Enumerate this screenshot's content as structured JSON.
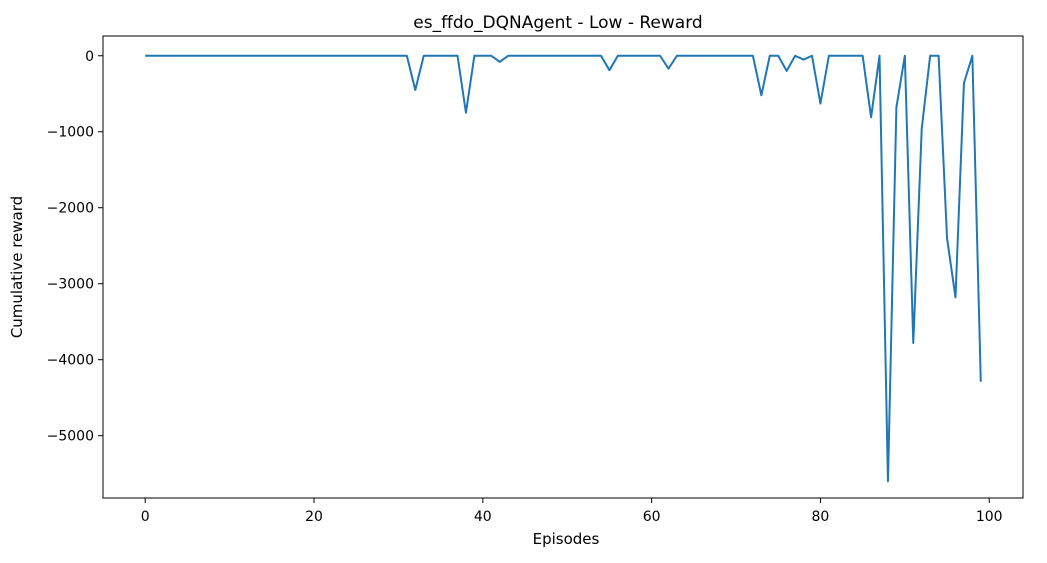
{
  "chart_data": {
    "type": "line",
    "title": "es_ffdo_DQNAgent - Low - Reward",
    "xlabel": "Episodes",
    "ylabel": "Cumulative reward",
    "xlim": [
      -5,
      104
    ],
    "ylim": [
      -5820,
      260
    ],
    "xticks": [
      0,
      20,
      40,
      60,
      80,
      100
    ],
    "yticks": [
      0,
      -1000,
      -2000,
      -3000,
      -4000,
      -5000
    ],
    "xtick_labels": [
      "0",
      "20",
      "40",
      "60",
      "80",
      "100"
    ],
    "ytick_labels": [
      "0",
      "−1000",
      "−2000",
      "−3000",
      "−4000",
      "−5000"
    ],
    "grid": false,
    "legend": "none",
    "line_color": "#1f77b4",
    "x": [
      0,
      1,
      2,
      3,
      4,
      5,
      6,
      7,
      8,
      9,
      10,
      11,
      12,
      13,
      14,
      15,
      16,
      17,
      18,
      19,
      20,
      21,
      22,
      23,
      24,
      25,
      26,
      27,
      28,
      29,
      30,
      31,
      32,
      33,
      34,
      35,
      36,
      37,
      38,
      39,
      40,
      41,
      42,
      43,
      44,
      45,
      46,
      47,
      48,
      49,
      50,
      51,
      52,
      53,
      54,
      55,
      56,
      57,
      58,
      59,
      60,
      61,
      62,
      63,
      64,
      65,
      66,
      67,
      68,
      69,
      70,
      71,
      72,
      73,
      74,
      75,
      76,
      77,
      78,
      79,
      80,
      81,
      82,
      83,
      84,
      85,
      86,
      87,
      88,
      89,
      90,
      91,
      92,
      93,
      94,
      95,
      96,
      97,
      98,
      99
    ],
    "series": [
      {
        "values": [
          0,
          0,
          0,
          0,
          0,
          0,
          0,
          0,
          0,
          0,
          0,
          0,
          0,
          0,
          0,
          0,
          0,
          0,
          0,
          0,
          0,
          0,
          0,
          0,
          0,
          0,
          0,
          0,
          0,
          0,
          0,
          0,
          -450,
          0,
          0,
          0,
          0,
          0,
          -750,
          0,
          0,
          0,
          -80,
          0,
          0,
          0,
          0,
          0,
          0,
          0,
          0,
          0,
          0,
          0,
          0,
          -190,
          0,
          0,
          0,
          0,
          0,
          0,
          -170,
          0,
          0,
          0,
          0,
          0,
          0,
          0,
          0,
          0,
          0,
          -520,
          0,
          0,
          -200,
          0,
          -50,
          0,
          -630,
          0,
          0,
          0,
          0,
          0,
          -810,
          0,
          -5600,
          -680,
          0,
          -3780,
          -960,
          0,
          0,
          -2400,
          -3180,
          -360,
          0,
          -4290
        ]
      }
    ]
  }
}
